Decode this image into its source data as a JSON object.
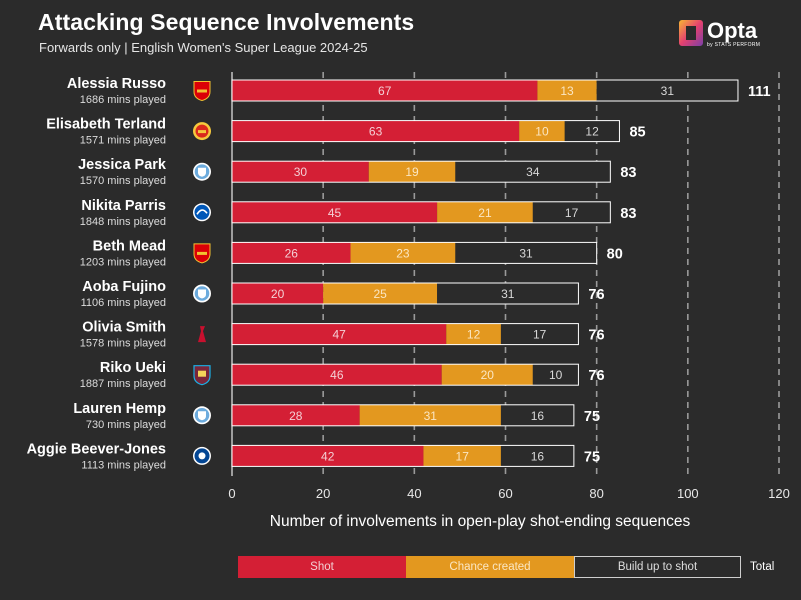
{
  "title": "Attacking Sequence Involvements",
  "subtitle": "Forwards only | English Women's Super League 2024-25",
  "brand": {
    "name": "Opta",
    "tagline": "by STATS PERFORM"
  },
  "colors": {
    "background": "#2b2b2b",
    "shot": "#d41f35",
    "chance": "#e3981f",
    "buildup": "#2b2b2b",
    "outline": "#ffffff",
    "grid": "#9a9a9a"
  },
  "chart_data": {
    "type": "bar",
    "orientation": "horizontal",
    "stacked": true,
    "xlabel": "Number of involvements in open-play shot-ending sequences",
    "xlim": [
      0,
      120
    ],
    "xticks": [
      0,
      20,
      40,
      60,
      80,
      100,
      120
    ],
    "grid": "vertical dashed",
    "categories": [
      "Alessia Russo",
      "Elisabeth Terland",
      "Jessica Park",
      "Nikita Parris",
      "Beth Mead",
      "Aoba Fujino",
      "Olivia Smith",
      "Riko Ueki",
      "Lauren Hemp",
      "Aggie Beever-Jones"
    ],
    "minutes": [
      "1686 mins played",
      "1571 mins played",
      "1570 mins played",
      "1848 mins played",
      "1203 mins played",
      "1106 mins played",
      "1578 mins played",
      "1887 mins played",
      "730 mins played",
      "1113 mins played"
    ],
    "clubs": [
      "arsenal-crest-icon",
      "man-utd-crest-icon",
      "man-city-crest-icon",
      "brighton-crest-icon",
      "arsenal-crest-icon",
      "man-city-crest-icon",
      "liverpool-crest-icon",
      "west-ham-crest-icon",
      "man-city-crest-icon",
      "chelsea-crest-icon"
    ],
    "series": [
      {
        "name": "Shot",
        "values": [
          67,
          63,
          30,
          45,
          26,
          20,
          47,
          46,
          28,
          42
        ]
      },
      {
        "name": "Chance created",
        "values": [
          13,
          10,
          19,
          21,
          23,
          25,
          12,
          20,
          31,
          17
        ]
      },
      {
        "name": "Build up to shot",
        "values": [
          31,
          12,
          34,
          17,
          31,
          31,
          17,
          10,
          16,
          16
        ]
      }
    ],
    "totals": [
      111,
      85,
      83,
      83,
      80,
      76,
      76,
      76,
      75,
      75
    ],
    "legend": {
      "position": "bottom",
      "items": [
        "Shot",
        "Chance created",
        "Build up to shot"
      ],
      "total_label": "Total"
    }
  }
}
